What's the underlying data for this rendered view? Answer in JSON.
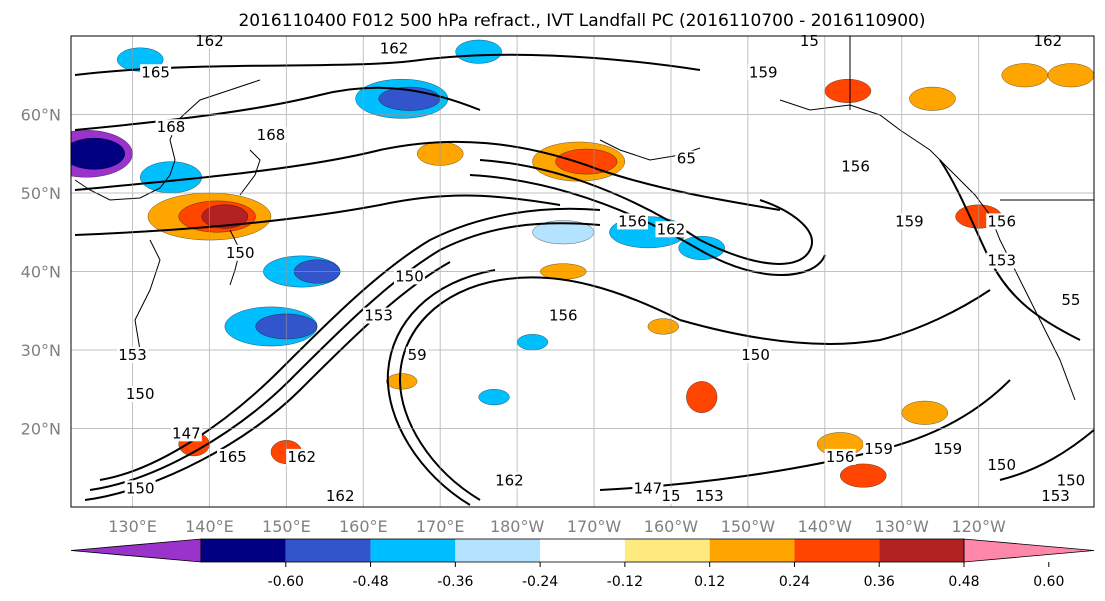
{
  "chart_data": {
    "type": "map-contour",
    "title": "2016110400 F012 500 hPa refract., IVT Landfall PC (2016110700 - 2016110900)",
    "projection": "equirectangular",
    "lon_range_east": [
      122,
      255
    ],
    "lat_range": [
      10,
      70
    ],
    "grid": true,
    "x_ticks": [
      {
        "lon": 130,
        "label": "130°E"
      },
      {
        "lon": 140,
        "label": "140°E"
      },
      {
        "lon": 150,
        "label": "150°E"
      },
      {
        "lon": 160,
        "label": "160°E"
      },
      {
        "lon": 170,
        "label": "170°E"
      },
      {
        "lon": 180,
        "label": "180°W"
      },
      {
        "lon": 190,
        "label": "170°W"
      },
      {
        "lon": 200,
        "label": "160°W"
      },
      {
        "lon": 210,
        "label": "150°W"
      },
      {
        "lon": 220,
        "label": "140°W"
      },
      {
        "lon": 230,
        "label": "130°W"
      },
      {
        "lon": 240,
        "label": "120°W"
      }
    ],
    "y_ticks": [
      {
        "lat": 20,
        "label": "20°N"
      },
      {
        "lat": 30,
        "label": "30°N"
      },
      {
        "lat": 40,
        "label": "40°N"
      },
      {
        "lat": 50,
        "label": "50°N"
      },
      {
        "lat": 60,
        "label": "60°N"
      }
    ],
    "colorbar": {
      "orientation": "horizontal",
      "extend": "both",
      "levels": [
        -0.72,
        -0.6,
        -0.48,
        -0.36,
        -0.24,
        -0.12,
        0.12,
        0.24,
        0.36,
        0.48,
        0.6,
        0.72
      ],
      "colors": [
        "#9933cc",
        "#000080",
        "#3355cc",
        "#00bfff",
        "#b3e3ff",
        "#ffffff",
        "#ffea80",
        "#ffa500",
        "#ff4500",
        "#b22222",
        "#ff88aa"
      ],
      "tick_labels": [
        "-0.60",
        "-0.48",
        "-0.36",
        "-0.24",
        "-0.12",
        "0.12",
        "0.24",
        "0.36",
        "0.48",
        "0.60"
      ]
    },
    "contour_labels": [
      {
        "text": "162",
        "lon": 140,
        "lat": 69
      },
      {
        "text": "165",
        "lon": 133,
        "lat": 65
      },
      {
        "text": "168",
        "lon": 135,
        "lat": 58
      },
      {
        "text": "168",
        "lon": 148,
        "lat": 57
      },
      {
        "text": "162",
        "lon": 164,
        "lat": 68
      },
      {
        "text": "159",
        "lon": 212,
        "lat": 65
      },
      {
        "text": "15",
        "lon": 218,
        "lat": 69
      },
      {
        "text": "162",
        "lon": 249,
        "lat": 69
      },
      {
        "text": "156",
        "lon": 224,
        "lat": 53
      },
      {
        "text": "65",
        "lon": 202,
        "lat": 54
      },
      {
        "text": "156",
        "lon": 195,
        "lat": 46
      },
      {
        "text": "162",
        "lon": 200,
        "lat": 45
      },
      {
        "text": "159",
        "lon": 231,
        "lat": 46
      },
      {
        "text": "156",
        "lon": 243,
        "lat": 46
      },
      {
        "text": "153",
        "lon": 243,
        "lat": 41
      },
      {
        "text": "55",
        "lon": 252,
        "lat": 36
      },
      {
        "text": "150",
        "lon": 144,
        "lat": 42
      },
      {
        "text": "150",
        "lon": 166,
        "lat": 39
      },
      {
        "text": "153",
        "lon": 162,
        "lat": 34
      },
      {
        "text": "156",
        "lon": 186,
        "lat": 34
      },
      {
        "text": "59",
        "lon": 167,
        "lat": 29
      },
      {
        "text": "153",
        "lon": 130,
        "lat": 29
      },
      {
        "text": "150",
        "lon": 131,
        "lat": 24
      },
      {
        "text": "147",
        "lon": 137,
        "lat": 19
      },
      {
        "text": "165",
        "lon": 143,
        "lat": 16
      },
      {
        "text": "162",
        "lon": 152,
        "lat": 16
      },
      {
        "text": "162",
        "lon": 157,
        "lat": 11
      },
      {
        "text": "150",
        "lon": 131,
        "lat": 12
      },
      {
        "text": "162",
        "lon": 179,
        "lat": 13
      },
      {
        "text": "147",
        "lon": 197,
        "lat": 12
      },
      {
        "text": "15",
        "lon": 200,
        "lat": 11
      },
      {
        "text": "153",
        "lon": 205,
        "lat": 11
      },
      {
        "text": "150",
        "lon": 211,
        "lat": 29
      },
      {
        "text": "159",
        "lon": 227,
        "lat": 17
      },
      {
        "text": "159",
        "lon": 236,
        "lat": 17
      },
      {
        "text": "156",
        "lon": 222,
        "lat": 16
      },
      {
        "text": "150",
        "lon": 243,
        "lat": 15
      },
      {
        "text": "150",
        "lon": 252,
        "lat": 13
      },
      {
        "text": "153",
        "lon": 250,
        "lat": 11
      }
    ]
  }
}
